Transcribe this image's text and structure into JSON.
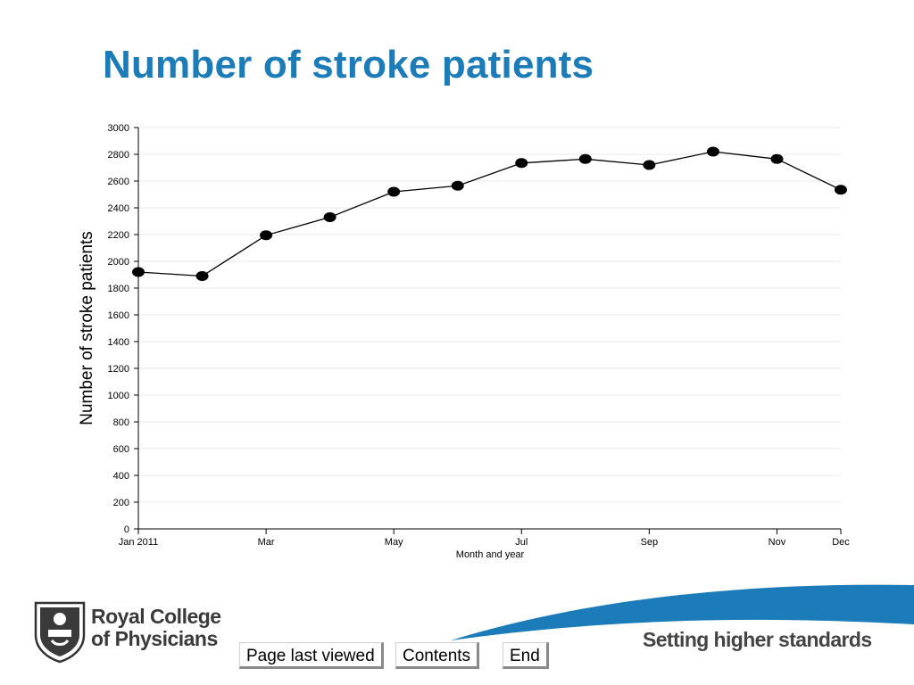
{
  "slide": {
    "title": "Number of stroke patients"
  },
  "chart_data": {
    "type": "line",
    "ylabel": "Number of stroke patients",
    "xlabel": "Month and year",
    "ylim": [
      0,
      3000
    ],
    "yticks": [
      0,
      200,
      400,
      600,
      800,
      1000,
      1200,
      1400,
      1600,
      1800,
      2000,
      2200,
      2400,
      2600,
      2800,
      3000
    ],
    "x_tick_labels": [
      "Jan 2011",
      "",
      "Mar",
      "",
      "May",
      "",
      "Jul",
      "",
      "Sep",
      "",
      "Nov",
      "Dec"
    ],
    "grid": true,
    "legend": "none",
    "series": [
      {
        "values": [
          1920,
          1890,
          2195,
          2330,
          2520,
          2565,
          2735,
          2765,
          2720,
          2820,
          2765,
          2535
        ]
      }
    ],
    "colors": {
      "line": "#000000",
      "marker": "#000000",
      "grid": "#e8e8e8"
    }
  },
  "navigation": {
    "page_last_viewed": "Page last viewed",
    "contents": "Contents",
    "end": "End"
  },
  "branding": {
    "org_line1": "Royal College",
    "org_line2": "of Physicians",
    "tagline": "Setting higher standards",
    "brand_color": "#1b7cb9"
  }
}
